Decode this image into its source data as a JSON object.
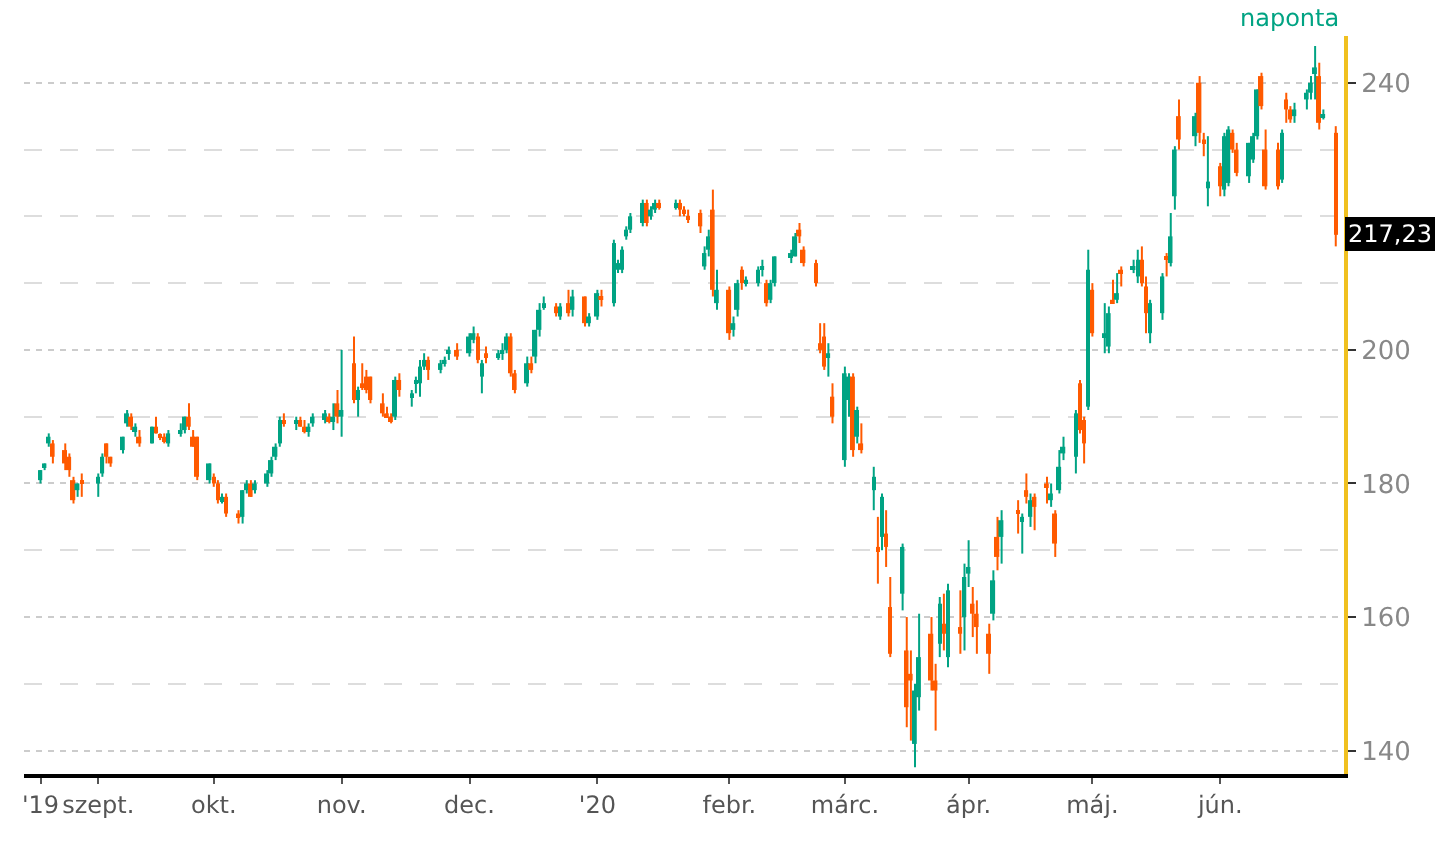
{
  "chart_data": {
    "type": "candlestick",
    "x": [
      "2019-08-20",
      "2019-08-21",
      "2019-08-22",
      "2019-08-23",
      "2019-08-26",
      "2019-08-27",
      "2019-08-28",
      "2019-08-29",
      "2019-08-30",
      "2019-09-03",
      "2019-09-04",
      "2019-09-05",
      "2019-09-06",
      "2019-09-09",
      "2019-09-10",
      "2019-09-11",
      "2019-09-12",
      "2019-09-13",
      "2019-09-16",
      "2019-09-17",
      "2019-09-18",
      "2019-09-19",
      "2019-09-20",
      "2019-09-23",
      "2019-09-24",
      "2019-09-25",
      "2019-09-26",
      "2019-09-27",
      "2019-09-30",
      "2019-10-01",
      "2019-10-02",
      "2019-10-03",
      "2019-10-04",
      "2019-10-07",
      "2019-10-08",
      "2019-10-09",
      "2019-10-10",
      "2019-10-11",
      "2019-10-14",
      "2019-10-15",
      "2019-10-16",
      "2019-10-17",
      "2019-10-18",
      "2019-10-21",
      "2019-10-22",
      "2019-10-23",
      "2019-10-24",
      "2019-10-25",
      "2019-10-28",
      "2019-10-29",
      "2019-10-30",
      "2019-10-31",
      "2019-11-01",
      "2019-11-04",
      "2019-11-05",
      "2019-11-06",
      "2019-11-07",
      "2019-11-08",
      "2019-11-11",
      "2019-11-12",
      "2019-11-13",
      "2019-11-14",
      "2019-11-15",
      "2019-11-18",
      "2019-11-19",
      "2019-11-20",
      "2019-11-21",
      "2019-11-22",
      "2019-11-25",
      "2019-11-26",
      "2019-11-27",
      "2019-11-29",
      "2019-12-02",
      "2019-12-03",
      "2019-12-04",
      "2019-12-05",
      "2019-12-06",
      "2019-12-09",
      "2019-12-10",
      "2019-12-11",
      "2019-12-12",
      "2019-12-13",
      "2019-12-16",
      "2019-12-17",
      "2019-12-18",
      "2019-12-19",
      "2019-12-20",
      "2019-12-23",
      "2019-12-24",
      "2019-12-26",
      "2019-12-27",
      "2019-12-30",
      "2019-12-31",
      "2020-01-02",
      "2020-01-03",
      "2020-01-06",
      "2020-01-07",
      "2020-01-08",
      "2020-01-09",
      "2020-01-10",
      "2020-01-13",
      "2020-01-14",
      "2020-01-15",
      "2020-01-16",
      "2020-01-17",
      "2020-01-21",
      "2020-01-22",
      "2020-01-23",
      "2020-01-24",
      "2020-01-27",
      "2020-01-28",
      "2020-01-29",
      "2020-01-30",
      "2020-01-31",
      "2020-02-03",
      "2020-02-04",
      "2020-02-05",
      "2020-02-06",
      "2020-02-07",
      "2020-02-10",
      "2020-02-11",
      "2020-02-12",
      "2020-02-13",
      "2020-02-14",
      "2020-02-18",
      "2020-02-19",
      "2020-02-20",
      "2020-02-21",
      "2020-02-24",
      "2020-02-25",
      "2020-02-26",
      "2020-02-27",
      "2020-02-28",
      "2020-03-02",
      "2020-03-03",
      "2020-03-04",
      "2020-03-05",
      "2020-03-06",
      "2020-03-09",
      "2020-03-10",
      "2020-03-11",
      "2020-03-12",
      "2020-03-13",
      "2020-03-16",
      "2020-03-17",
      "2020-03-18",
      "2020-03-19",
      "2020-03-20",
      "2020-03-23",
      "2020-03-24",
      "2020-03-25",
      "2020-03-26",
      "2020-03-27",
      "2020-03-30",
      "2020-03-31",
      "2020-04-01",
      "2020-04-02",
      "2020-04-03",
      "2020-04-06",
      "2020-04-07",
      "2020-04-08",
      "2020-04-09",
      "2020-04-13",
      "2020-04-14",
      "2020-04-15",
      "2020-04-16",
      "2020-04-17",
      "2020-04-20",
      "2020-04-21",
      "2020-04-22",
      "2020-04-23",
      "2020-04-24",
      "2020-04-27",
      "2020-04-28",
      "2020-04-29",
      "2020-04-30",
      "2020-05-01",
      "2020-05-04",
      "2020-05-05",
      "2020-05-06",
      "2020-05-07",
      "2020-05-08",
      "2020-05-11",
      "2020-05-12",
      "2020-05-13",
      "2020-05-14",
      "2020-05-15",
      "2020-05-18",
      "2020-05-19",
      "2020-05-20",
      "2020-05-21",
      "2020-05-22",
      "2020-05-26",
      "2020-05-27",
      "2020-05-28",
      "2020-05-29",
      "2020-06-01",
      "2020-06-02",
      "2020-06-03",
      "2020-06-04",
      "2020-06-05",
      "2020-06-08",
      "2020-06-09",
      "2020-06-10",
      "2020-06-11",
      "2020-06-12",
      "2020-06-15",
      "2020-06-16",
      "2020-06-17",
      "2020-06-18",
      "2020-06-19",
      "2020-06-22",
      "2020-06-23",
      "2020-06-24",
      "2020-06-25",
      "2020-06-26",
      "2020-06-29"
    ],
    "ohlc": [
      [
        180.5,
        182,
        180,
        182
      ],
      [
        182.5,
        183,
        182,
        183
      ],
      [
        186,
        187.5,
        185.5,
        187
      ],
      [
        186,
        186.5,
        183,
        184
      ],
      [
        185,
        186,
        182,
        183
      ],
      [
        184,
        184.5,
        181,
        182
      ],
      [
        180.5,
        181,
        177,
        177.5
      ],
      [
        179,
        180,
        178,
        180
      ],
      [
        180.5,
        181.5,
        178,
        180
      ],
      [
        180,
        181.5,
        178,
        181
      ],
      [
        181.5,
        184.5,
        181,
        184
      ],
      [
        186,
        186,
        183,
        184
      ],
      [
        184,
        184,
        182.5,
        183
      ],
      [
        185,
        187,
        184.5,
        187
      ],
      [
        189,
        191,
        188.5,
        190.5
      ],
      [
        190,
        190.5,
        188,
        188.5
      ],
      [
        188,
        189,
        187,
        188.5
      ],
      [
        187,
        188,
        185.5,
        186
      ],
      [
        186,
        188.5,
        186,
        188.5
      ],
      [
        188.5,
        190,
        187.5,
        187.5
      ],
      [
        187,
        187.5,
        186.5,
        187
      ],
      [
        187,
        187.5,
        186,
        186.5
      ],
      [
        186,
        188,
        185.5,
        187.5
      ],
      [
        187.5,
        189,
        187,
        188
      ],
      [
        188,
        190,
        187.5,
        190
      ],
      [
        190,
        192,
        188,
        188.5
      ],
      [
        187,
        188,
        185.5,
        185.5
      ],
      [
        187,
        187,
        180.5,
        181
      ],
      [
        180.5,
        183,
        180,
        183
      ],
      [
        181,
        181.5,
        179.5,
        180
      ],
      [
        180,
        180.5,
        177,
        177.5
      ],
      [
        177.5,
        178.5,
        177,
        178
      ],
      [
        178,
        178.5,
        175,
        175.5
      ],
      [
        175.5,
        176,
        174,
        175
      ],
      [
        175,
        179,
        174,
        179
      ],
      [
        179,
        180.5,
        178.5,
        180
      ],
      [
        180,
        180.5,
        178,
        178
      ],
      [
        179,
        180.5,
        178.5,
        180
      ],
      [
        180,
        182,
        179.5,
        181.5
      ],
      [
        181.5,
        184,
        181,
        183.5
      ],
      [
        184,
        186,
        183.5,
        185.5
      ],
      [
        186,
        190,
        185.5,
        189.5
      ],
      [
        189.5,
        190.5,
        188.5,
        189
      ],
      [
        189,
        190,
        188,
        189.5
      ],
      [
        189.5,
        190,
        188.5,
        188.5
      ],
      [
        188.5,
        189.5,
        187.5,
        188
      ],
      [
        188,
        189,
        187,
        188.5
      ],
      [
        189,
        190.5,
        188.5,
        190
      ],
      [
        189.5,
        191,
        189,
        190.5
      ],
      [
        190,
        190.5,
        189,
        189.5
      ],
      [
        189.5,
        192,
        188,
        190
      ],
      [
        192,
        194,
        189,
        190
      ],
      [
        190,
        200,
        187,
        191
      ],
      [
        198,
        202,
        192,
        192.5
      ],
      [
        192.5,
        194.5,
        190,
        194
      ],
      [
        195,
        198,
        194,
        194.5
      ],
      [
        196,
        197,
        193.5,
        194
      ],
      [
        196,
        196,
        192,
        192.5
      ],
      [
        192,
        193.5,
        190,
        190.5
      ],
      [
        190.5,
        191.5,
        190,
        190
      ],
      [
        190,
        190.5,
        189,
        189.5
      ],
      [
        190,
        196,
        189.5,
        195.5
      ],
      [
        195.5,
        196.5,
        193,
        194
      ],
      [
        193,
        194,
        191.5,
        193.5
      ],
      [
        195,
        196,
        193.5,
        195.5
      ],
      [
        195,
        198.5,
        193,
        197.5
      ],
      [
        197.5,
        199.5,
        197,
        198.5
      ],
      [
        198.5,
        199,
        195.5,
        197
      ],
      [
        197,
        198.5,
        196.5,
        198
      ],
      [
        198,
        199,
        197.5,
        198.5
      ],
      [
        199.5,
        200.5,
        198.5,
        200
      ],
      [
        200,
        201,
        198.5,
        199
      ],
      [
        199.5,
        202.5,
        199,
        202
      ],
      [
        201.5,
        203.5,
        201,
        202.5
      ],
      [
        202,
        202.5,
        198,
        198.5
      ],
      [
        196,
        198.5,
        193.5,
        198
      ],
      [
        199.5,
        200.5,
        198,
        199
      ],
      [
        199,
        200,
        198.5,
        199.5
      ],
      [
        199.5,
        201,
        198.5,
        200
      ],
      [
        200,
        202.5,
        199.5,
        202
      ],
      [
        202,
        202.5,
        196,
        196.5
      ],
      [
        196.5,
        197,
        193.5,
        194
      ],
      [
        195,
        199,
        194.5,
        198
      ],
      [
        198,
        199,
        196.5,
        197
      ],
      [
        199,
        203,
        198,
        203
      ],
      [
        203,
        207,
        202,
        206
      ],
      [
        206.5,
        208,
        206,
        207
      ],
      [
        206.5,
        207,
        205,
        205.5
      ],
      [
        205,
        207,
        204.5,
        206.5
      ],
      [
        207,
        209,
        205,
        205.5
      ],
      [
        206,
        209,
        205,
        208
      ],
      [
        208,
        208,
        203.5,
        204
      ],
      [
        204,
        205.5,
        203.5,
        205
      ],
      [
        205,
        209,
        204.5,
        208.5
      ],
      [
        208,
        209,
        206.5,
        207.5
      ],
      [
        207,
        216.5,
        206.5,
        216
      ],
      [
        212,
        213.5,
        211.5,
        213
      ],
      [
        212,
        215.5,
        211.5,
        215
      ],
      [
        217,
        218.5,
        216.5,
        218
      ],
      [
        218,
        220.5,
        217.5,
        220
      ],
      [
        219,
        222.5,
        218.5,
        222
      ],
      [
        222,
        222.5,
        218.5,
        219
      ],
      [
        220,
        221.5,
        219.5,
        221
      ],
      [
        221,
        222.5,
        220.5,
        222
      ],
      [
        222,
        222.5,
        221,
        221.5
      ],
      [
        221.5,
        222.5,
        221,
        222
      ],
      [
        222,
        222.5,
        220,
        221
      ],
      [
        221,
        221.5,
        220,
        220.5
      ],
      [
        220,
        221,
        219,
        219.5
      ],
      [
        220.5,
        221,
        217.5,
        218.5
      ],
      [
        212.5,
        215.5,
        212,
        214.5
      ],
      [
        215,
        218,
        214,
        217
      ],
      [
        221,
        224,
        208,
        209
      ],
      [
        207,
        212,
        206,
        209
      ],
      [
        209,
        209.5,
        201.5,
        202.5
      ],
      [
        203,
        205,
        202,
        204
      ],
      [
        206,
        210.5,
        205,
        210
      ],
      [
        212,
        212.5,
        209,
        210
      ],
      [
        210,
        211,
        209.5,
        210.5
      ],
      [
        210,
        212.5,
        209.5,
        212
      ],
      [
        212,
        213.5,
        211,
        212.5
      ],
      [
        210,
        210.5,
        206.5,
        207
      ],
      [
        207.5,
        210.5,
        207,
        210
      ],
      [
        210,
        214,
        209.5,
        214
      ],
      [
        214,
        215,
        213,
        214.5
      ],
      [
        214,
        217.5,
        214,
        217
      ],
      [
        218,
        219,
        216,
        217
      ],
      [
        215,
        215.5,
        212.5,
        213
      ],
      [
        213,
        213.5,
        209.5,
        210
      ],
      [
        201,
        204,
        199.5,
        200
      ],
      [
        202,
        204,
        197,
        197.5
      ],
      [
        199,
        201,
        196,
        199.5
      ],
      [
        193,
        195,
        189,
        190
      ],
      [
        183.5,
        197.5,
        182.5,
        196.5
      ],
      [
        192.5,
        196.5,
        190,
        196
      ],
      [
        196,
        196.5,
        184,
        185
      ],
      [
        187,
        191.5,
        186,
        191
      ],
      [
        186,
        189,
        184.5,
        185
      ],
      [
        179,
        182.5,
        176,
        181
      ],
      [
        170.5,
        175,
        165,
        170
      ],
      [
        172,
        178.5,
        170,
        178
      ],
      [
        172.5,
        176,
        167.5,
        170.5
      ],
      [
        161.5,
        166,
        154,
        154.5
      ],
      [
        163.5,
        171,
        161,
        170.5
      ],
      [
        155,
        160,
        143.5,
        146.5
      ],
      [
        151.5,
        155,
        141.5,
        150.5
      ],
      [
        141,
        150,
        137.5,
        149
      ],
      [
        148,
        160.5,
        146,
        154
      ],
      [
        157.5,
        160,
        149,
        150.5
      ],
      [
        150.5,
        153,
        143,
        149
      ],
      [
        156,
        163,
        154,
        162
      ],
      [
        159,
        163.5,
        155,
        157.5
      ],
      [
        154,
        165,
        152.5,
        164
      ],
      [
        158.5,
        164,
        154.5,
        157.5
      ],
      [
        160,
        168,
        155,
        166
      ],
      [
        166.5,
        171.5,
        164.5,
        167.5
      ],
      [
        162,
        164.5,
        157,
        160.5
      ],
      [
        160.5,
        162.5,
        154.5,
        158.5
      ],
      [
        157.5,
        159,
        151.5,
        154.5
      ],
      [
        160.5,
        167,
        159.5,
        165.5
      ],
      [
        172,
        175,
        167,
        169
      ],
      [
        172,
        176,
        168,
        174.5
      ],
      [
        176,
        177.5,
        172.5,
        175.5
      ],
      [
        174.5,
        175.5,
        169.5,
        175
      ],
      [
        179,
        181.5,
        177,
        178
      ],
      [
        175,
        178.5,
        173.5,
        177.5
      ],
      [
        178,
        178.5,
        173,
        176.5
      ],
      [
        180,
        181,
        177,
        179.5
      ],
      [
        177.5,
        180,
        176.5,
        178.5
      ],
      [
        175.5,
        176,
        169,
        171
      ],
      [
        179,
        185,
        178.5,
        182.5
      ],
      [
        184.5,
        187,
        183.5,
        185.5
      ],
      [
        184,
        191,
        181.5,
        190.5
      ],
      [
        195,
        195.5,
        187.5,
        188
      ],
      [
        189.5,
        190,
        183,
        186
      ],
      [
        191.5,
        215,
        191,
        212
      ],
      [
        209,
        210,
        202,
        202.5
      ],
      [
        202,
        207,
        199.5,
        202.5
      ],
      [
        200.5,
        206.5,
        199.5,
        205.5
      ],
      [
        207.5,
        210.5,
        207,
        207
      ],
      [
        207.5,
        211.5,
        207,
        208.5
      ],
      [
        212,
        212.5,
        209.5,
        211.5
      ],
      [
        212,
        213.5,
        211.5,
        212.5
      ],
      [
        211,
        215,
        210,
        213.5
      ],
      [
        213.5,
        215.5,
        209.5,
        210
      ],
      [
        209.5,
        211,
        202.5,
        205.5
      ],
      [
        202.5,
        207.5,
        201,
        207
      ],
      [
        205.5,
        211.5,
        204.5,
        211
      ],
      [
        214,
        214.5,
        211,
        213.5
      ],
      [
        213,
        220.5,
        212.5,
        217
      ],
      [
        223,
        230.5,
        221,
        230
      ],
      [
        235,
        237.5,
        230,
        231.5
      ],
      [
        232,
        235.5,
        230.5,
        235
      ],
      [
        240,
        241,
        231,
        232.5
      ],
      [
        231.5,
        232.5,
        229,
        231
      ],
      [
        224.2,
        232,
        221.5,
        225.2
      ],
      [
        227.5,
        228,
        223,
        224.5
      ],
      [
        224,
        232.5,
        223,
        232
      ],
      [
        225,
        233.5,
        224.5,
        233
      ],
      [
        232.5,
        233,
        229.5,
        230
      ],
      [
        230,
        231,
        226,
        226.5
      ],
      [
        226,
        231,
        225,
        231
      ],
      [
        228.5,
        232.5,
        228,
        232
      ],
      [
        232,
        239,
        231.5,
        239
      ],
      [
        241,
        241.5,
        236,
        236.5
      ],
      [
        230,
        233,
        224,
        224.5
      ],
      [
        230,
        231,
        224,
        224.5
      ],
      [
        225.5,
        233,
        225,
        232.5
      ],
      [
        237.5,
        238.5,
        234,
        236
      ],
      [
        236,
        236.5,
        234,
        234.5
      ],
      [
        235,
        237,
        234,
        236
      ],
      [
        237.5,
        239,
        236,
        238.5
      ],
      [
        238.5,
        241,
        237.5,
        240
      ],
      [
        241.3,
        245.5,
        237.5,
        242.3
      ],
      [
        241,
        243,
        233,
        234
      ],
      [
        235,
        236,
        234.5,
        235.2
      ],
      [
        232.5,
        233.5,
        215.5,
        217.23
      ]
    ],
    "colors": [
      "#00a383",
      "#00a383",
      "#00a383",
      "#ff5a00",
      "#ff5a00",
      "#ff5a00",
      "#ff5a00",
      "#00a383",
      "#ff5a00",
      "#00a383",
      "#00a383",
      "#ff5a00",
      "#ff5a00",
      "#00a383",
      "#00a383",
      "#ff5a00",
      "#00a383",
      "#ff5a00",
      "#00a383",
      "#ff5a00",
      "#ff5a00",
      "#ff5a00",
      "#00a383",
      "#00a383",
      "#00a383",
      "#ff5a00",
      "#ff5a00",
      "#ff5a00",
      "#00a383",
      "#ff5a00",
      "#ff5a00",
      "#00a383",
      "#ff5a00",
      "#ff5a00",
      "#00a383",
      "#00a383",
      "#ff5a00",
      "#00a383",
      "#00a383",
      "#00a383",
      "#00a383",
      "#00a383",
      "#ff5a00",
      "#00a383",
      "#ff5a00",
      "#ff5a00",
      "#00a383",
      "#00a383",
      "#00a383",
      "#ff5a00",
      "#00a383",
      "#ff5a00",
      "#00a383",
      "#ff5a00",
      "#00a383",
      "#ff5a00",
      "#ff5a00",
      "#ff5a00",
      "#ff5a00",
      "#ff5a00",
      "#ff5a00",
      "#00a383",
      "#ff5a00",
      "#00a383",
      "#00a383",
      "#00a383",
      "#00a383",
      "#ff5a00",
      "#00a383",
      "#00a383",
      "#00a383",
      "#ff5a00",
      "#00a383",
      "#00a383",
      "#ff5a00",
      "#00a383",
      "#ff5a00",
      "#00a383",
      "#00a383",
      "#00a383",
      "#ff5a00",
      "#ff5a00",
      "#00a383",
      "#ff5a00",
      "#00a383",
      "#00a383",
      "#00a383",
      "#ff5a00",
      "#00a383",
      "#ff5a00",
      "#00a383",
      "#ff5a00",
      "#00a383",
      "#00a383",
      "#ff5a00",
      "#00a383",
      "#00a383",
      "#00a383",
      "#00a383",
      "#00a383",
      "#00a383",
      "#ff5a00",
      "#00a383",
      "#00a383",
      "#ff5a00",
      "#00a383",
      "#ff5a00",
      "#ff5a00",
      "#ff5a00",
      "#ff5a00",
      "#00a383",
      "#00a383",
      "#ff5a00",
      "#00a383",
      "#ff5a00",
      "#00a383",
      "#00a383",
      "#ff5a00",
      "#00a383",
      "#00a383",
      "#00a383",
      "#ff5a00",
      "#00a383",
      "#00a383",
      "#00a383",
      "#00a383",
      "#ff5a00",
      "#ff5a00",
      "#ff5a00",
      "#ff5a00",
      "#ff5a00",
      "#00a383",
      "#ff5a00",
      "#00a383",
      "#00a383",
      "#ff5a00",
      "#00a383",
      "#ff5a00",
      "#00a383",
      "#ff5a00",
      "#00a383",
      "#ff5a00",
      "#ff5a00",
      "#00a383",
      "#ff5a00",
      "#ff5a00",
      "#00a383",
      "#00a383",
      "#ff5a00",
      "#ff5a00",
      "#00a383",
      "#ff5a00",
      "#00a383",
      "#ff5a00",
      "#00a383",
      "#00a383",
      "#ff5a00",
      "#ff5a00",
      "#ff5a00",
      "#00a383",
      "#ff5a00",
      "#00a383",
      "#ff5a00",
      "#00a383",
      "#ff5a00",
      "#00a383",
      "#ff5a00",
      "#ff5a00",
      "#00a383",
      "#ff5a00",
      "#00a383",
      "#00a383",
      "#00a383",
      "#ff5a00",
      "#ff5a00",
      "#00a383",
      "#ff5a00",
      "#00a383",
      "#00a383",
      "#ff5a00",
      "#00a383",
      "#ff5a00",
      "#00a383",
      "#00a383",
      "#ff5a00",
      "#ff5a00",
      "#00a383",
      "#00a383",
      "#ff5a00",
      "#00a383",
      "#00a383",
      "#ff5a00",
      "#00a383",
      "#ff5a00",
      "#ff5a00",
      "#00a383",
      "#ff5a00",
      "#00a383",
      "#00a383",
      "#ff5a00",
      "#ff5a00",
      "#00a383",
      "#00a383",
      "#00a383",
      "#ff5a00",
      "#ff5a00",
      "#ff5a00",
      "#00a383",
      "#ff5a00",
      "#ff5a00",
      "#00a383",
      "#00a383",
      "#00a383",
      "#00a383",
      "#ff5a00",
      "#00a383",
      "#ff5a00"
    ],
    "xlim": [
      "2019-08-16",
      "2020-07-01"
    ],
    "xticks": [
      {
        "value": "2019-08-20",
        "label": "'19"
      },
      {
        "value": "2019-09-03",
        "label": "szept."
      },
      {
        "value": "2019-10-01",
        "label": "okt."
      },
      {
        "value": "2019-11-01",
        "label": "nov."
      },
      {
        "value": "2019-12-02",
        "label": "dec."
      },
      {
        "value": "2020-01-02",
        "label": "'20"
      },
      {
        "value": "2020-02-03",
        "label": "febr."
      },
      {
        "value": "2020-03-02",
        "label": "márc."
      },
      {
        "value": "2020-04-01",
        "label": "ápr."
      },
      {
        "value": "2020-05-01",
        "label": "máj."
      },
      {
        "value": "2020-06-01",
        "label": "jún."
      }
    ],
    "ylim": [
      136.5,
      247
    ],
    "yticks": [
      140,
      {
        "value": 150,
        "label": null
      },
      160,
      {
        "value": 170,
        "label": null
      },
      180,
      {
        "value": 190,
        "label": null
      },
      200,
      {
        "value": 210,
        "label": null
      },
      {
        "value": 220,
        "label": null
      },
      {
        "value": 230,
        "label": null
      },
      240
    ],
    "grid": "y",
    "legend": false,
    "annotations": [
      "naponta",
      "217,23"
    ]
  }
}
